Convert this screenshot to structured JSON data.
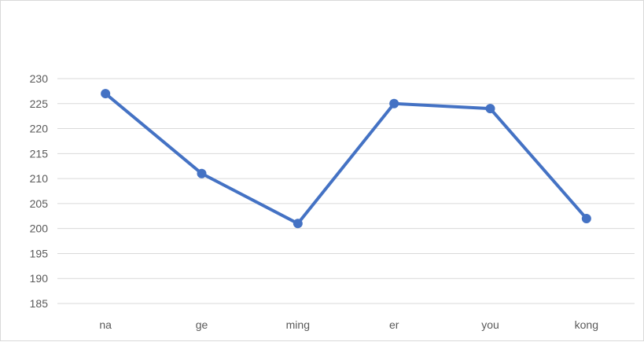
{
  "chart_data": {
    "type": "line",
    "title": "",
    "xlabel": "",
    "ylabel": "",
    "categories": [
      "na",
      "ge",
      "ming",
      "er",
      "you",
      "kong"
    ],
    "series": [
      {
        "values": [
          227,
          211,
          201,
          225,
          224,
          202
        ],
        "color": "#4472c4"
      }
    ],
    "ylim": [
      185,
      230
    ],
    "yticks": [
      "185",
      "190",
      "195",
      "200",
      "205",
      "210",
      "215",
      "220",
      "225",
      "230"
    ],
    "grid": true,
    "legend": "none",
    "gridline_color": "#d9d9d9",
    "label_color": "#595959"
  }
}
